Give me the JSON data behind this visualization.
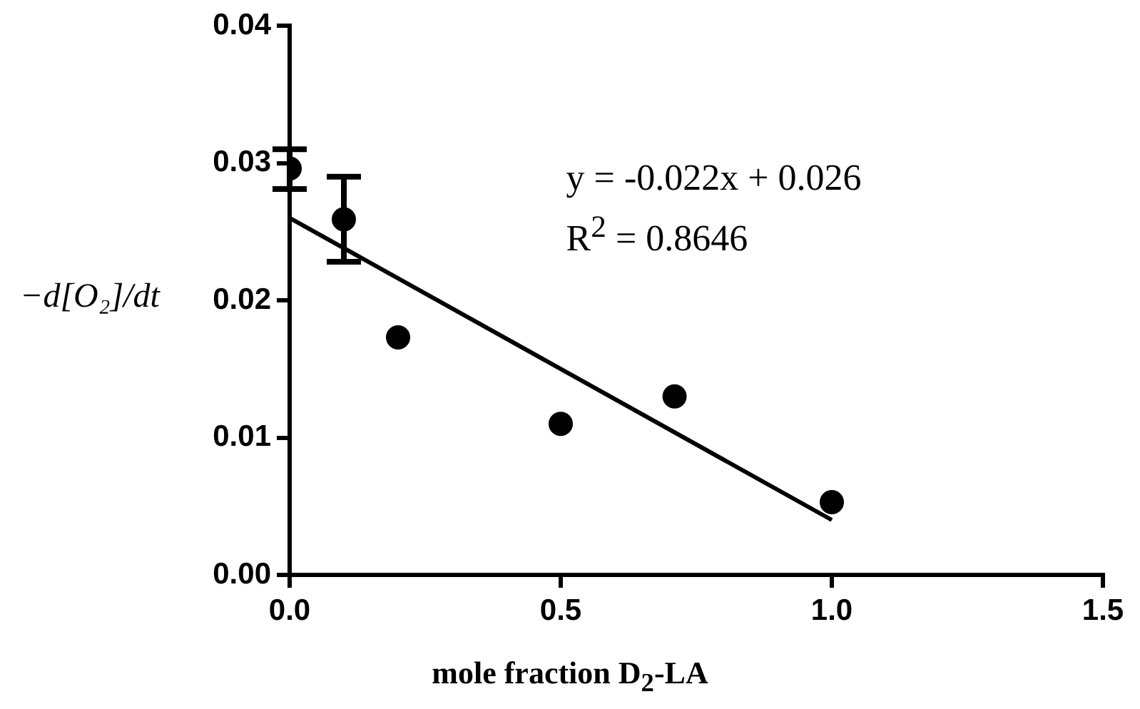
{
  "chart_data": {
    "type": "scatter",
    "xlabel": "mole fraction D$_{2}$-LA",
    "ylabel": "−d[O₂]/dt",
    "x": [
      0,
      0.1,
      0.2,
      0.5,
      0.71,
      1.0
    ],
    "xlim": [
      0,
      1.5
    ],
    "xticks": [
      {
        "value": 0,
        "label": "0.0"
      },
      0.5,
      {
        "value": 1,
        "label": "1.0"
      },
      1.5
    ],
    "ylim": [
      0,
      0.04
    ],
    "yticks": [
      {
        "value": 0,
        "label": "0.00"
      },
      0.01,
      0.02,
      0.03,
      0.04
    ],
    "grid": false,
    "legend": false,
    "marker": "circle",
    "series": [
      {
        "color": "#000000",
        "values": [
          0.0296,
          0.0259,
          0.0173,
          0.011,
          0.013,
          0.0053
        ],
        "errors": [
          [
            0.0281,
            0.031
          ],
          [
            0.0228,
            0.029
          ],
          null,
          null,
          null,
          null
        ]
      },
      {
        "type": "line",
        "color": "#000000",
        "x": [
          0,
          1
        ],
        "values": [
          0.026,
          0.004
        ],
        "line_style": "solid",
        "marker": "none"
      }
    ],
    "annotations": [
      "y = -0.022x + 0.026",
      "R$^{2}$ = 0.8646"
    ]
  }
}
